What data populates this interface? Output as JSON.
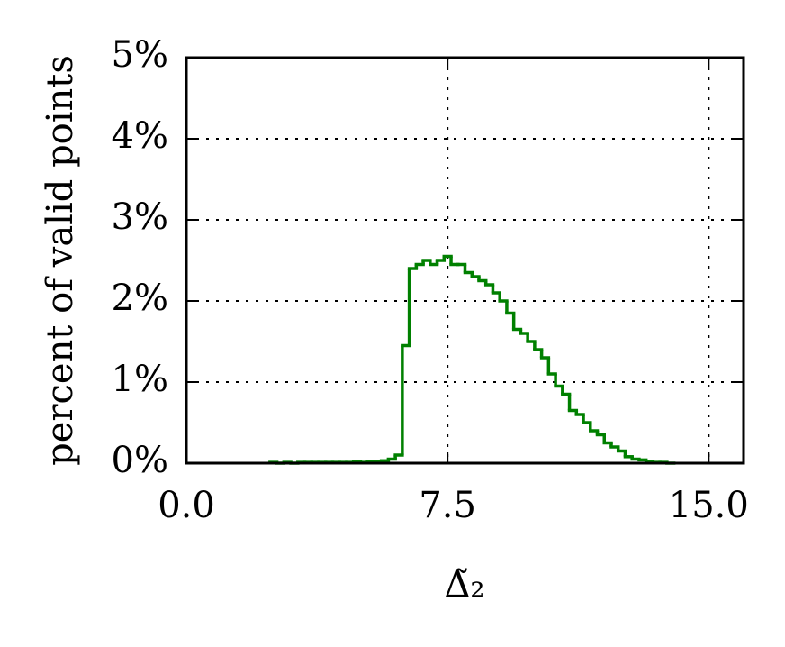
{
  "chart_data": {
    "type": "histogram",
    "y_label": "percent of valid points",
    "x_label": "Δ̃₂",
    "color": "#008000",
    "grid": true,
    "xlim": [
      0,
      16
    ],
    "ylim": [
      0,
      5
    ],
    "xticks": [
      {
        "value": 0,
        "label": "0.0"
      },
      7.5,
      {
        "value": 15,
        "label": "15.0"
      }
    ],
    "yticks": [
      {
        "value": 0,
        "label": "0%"
      },
      {
        "value": 1,
        "label": "1%"
      },
      {
        "value": 2,
        "label": "2%"
      },
      {
        "value": 3,
        "label": "3%"
      },
      {
        "value": 4,
        "label": "4%"
      },
      {
        "value": 5,
        "label": "5%"
      }
    ],
    "bins": [
      2.4,
      2.6,
      2.8,
      3.0,
      3.2,
      3.4,
      3.6,
      3.8,
      4.0,
      4.2,
      4.4,
      4.6,
      4.8,
      5.0,
      5.2,
      5.4,
      5.6,
      5.8,
      6.0,
      6.2,
      6.4,
      6.6,
      6.8,
      7.0,
      7.2,
      7.4,
      7.6,
      7.8,
      8.0,
      8.2,
      8.4,
      8.6,
      8.8,
      9.0,
      9.2,
      9.4,
      9.6,
      9.8,
      10.0,
      10.2,
      10.4,
      10.6,
      10.8,
      11.0,
      11.2,
      11.4,
      11.6,
      11.8,
      12.0,
      12.2,
      12.4,
      12.6,
      12.8,
      13.0,
      13.2,
      13.4,
      13.6,
      13.8,
      14.0
    ],
    "values": [
      0.01,
      0,
      0.01,
      0,
      0.01,
      0.01,
      0.01,
      0.01,
      0.01,
      0.01,
      0.01,
      0.01,
      0.02,
      0.01,
      0.02,
      0.02,
      0.03,
      0.05,
      0.1,
      1.45,
      2.4,
      2.45,
      2.5,
      2.45,
      2.5,
      2.55,
      2.45,
      2.45,
      2.35,
      2.3,
      2.25,
      2.2,
      2.1,
      2.0,
      1.85,
      1.65,
      1.6,
      1.5,
      1.4,
      1.3,
      1.1,
      0.95,
      0.85,
      0.65,
      0.6,
      0.5,
      0.4,
      0.35,
      0.25,
      0.2,
      0.15,
      0.08,
      0.05,
      0.04,
      0.02,
      0.01,
      0.01,
      0
    ]
  }
}
